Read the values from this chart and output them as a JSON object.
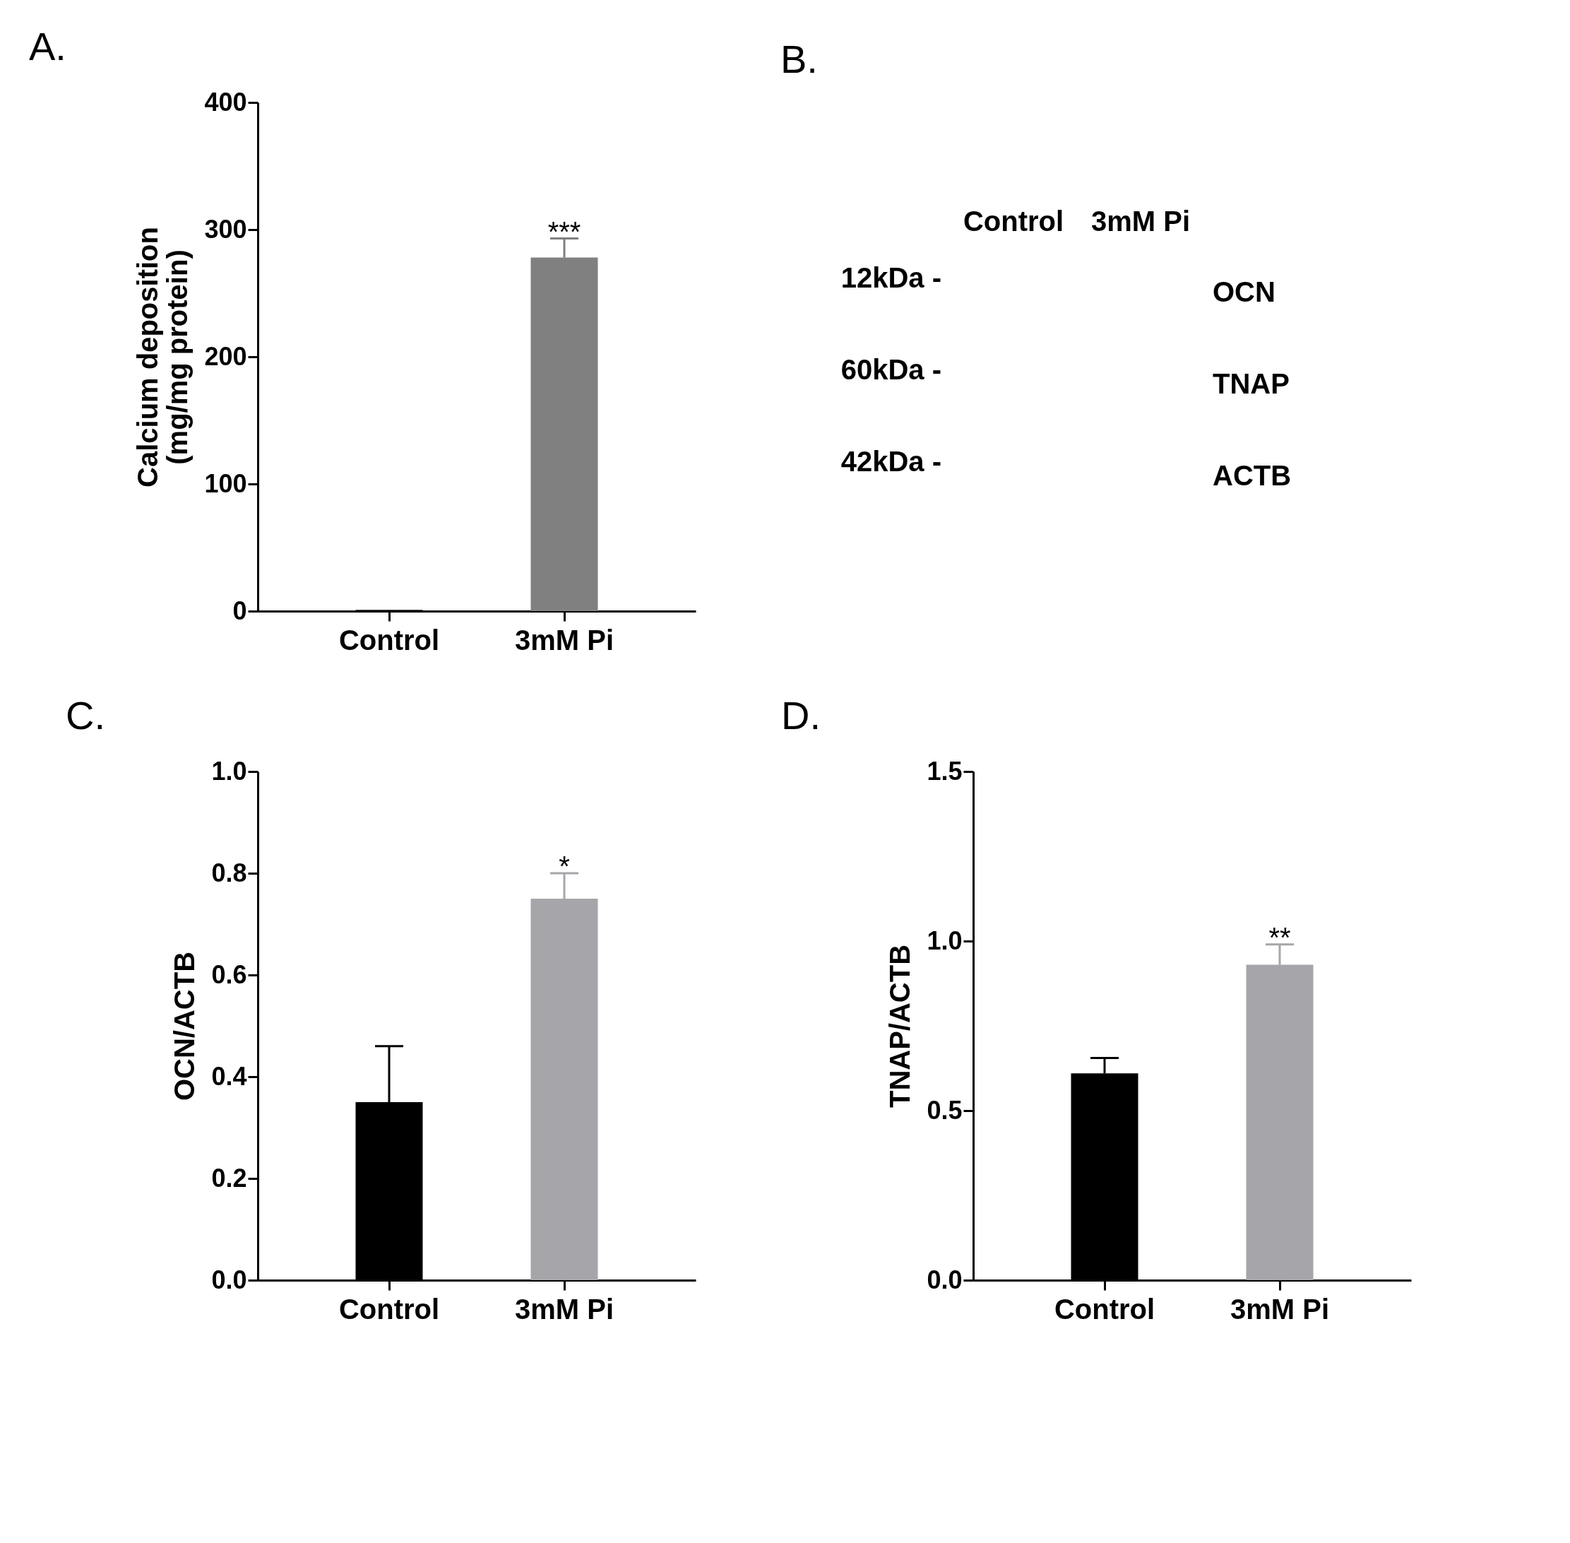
{
  "chart_data": [
    {
      "type": "bar",
      "title": "A.",
      "ylabel": "Calcium deposition\n(mg/mg protein)",
      "categories": [
        "Control",
        "3mM Pi"
      ],
      "values": [
        1,
        278
      ],
      "errors": [
        null,
        15
      ],
      "colors": [
        "#000000",
        "#808080"
      ],
      "ylim": [
        0,
        400
      ],
      "yticks": [
        0,
        100,
        200,
        300,
        400
      ],
      "grid": false,
      "annotations": [
        "***"
      ]
    },
    {
      "type": "other",
      "title": "B.",
      "categories": [
        "Control",
        "3mM Pi"
      ],
      "y_categories": [
        "12kDa -",
        "60kDa -",
        "42kDa -"
      ],
      "y2_categories": [
        "OCN",
        "TNAP",
        "ACTB"
      ]
    },
    {
      "type": "bar",
      "title": "C.",
      "ylabel": "OCN/ACTB",
      "categories": [
        "Control",
        "3mM Pi"
      ],
      "values": [
        0.35,
        0.75
      ],
      "errors": [
        0.11,
        0.05
      ],
      "colors": [
        "#000000",
        "#a6a6aa"
      ],
      "ylim": [
        0,
        1.0
      ],
      "yticks": [
        {
          "value": 0,
          "label": "0.0"
        },
        0.2,
        0.4,
        0.6,
        0.8,
        {
          "value": 1,
          "label": "1.0"
        }
      ],
      "grid": false,
      "annotations": [
        "*"
      ]
    },
    {
      "type": "bar",
      "title": "D.",
      "ylabel": "TNAP/ACTB",
      "categories": [
        "Control",
        "3mM Pi"
      ],
      "values": [
        0.61,
        0.93
      ],
      "errors": [
        0.045,
        0.06
      ],
      "colors": [
        "#000000",
        "#a6a6aa"
      ],
      "ylim": [
        0,
        1.5
      ],
      "yticks": [
        {
          "value": 0,
          "label": "0.0"
        },
        0.5,
        {
          "value": 1,
          "label": "1.0"
        },
        1.5
      ],
      "grid": false,
      "annotations": [
        "**"
      ]
    }
  ]
}
